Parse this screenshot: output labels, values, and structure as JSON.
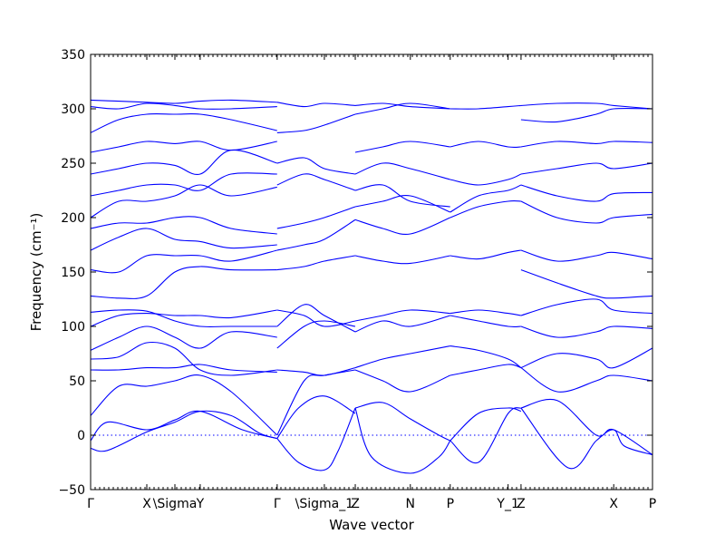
{
  "chart_data": {
    "type": "line",
    "title": "",
    "xlabel": "Wave vector",
    "ylabel": "Frequency (cm⁻¹)",
    "ylim": [
      -50,
      350
    ],
    "y_ticks": [
      -50,
      0,
      50,
      100,
      150,
      200,
      250,
      300,
      350
    ],
    "y_tick_labels": [
      "−50",
      "0",
      "50",
      "100",
      "150",
      "200",
      "250",
      "300",
      "350"
    ],
    "x_range": [
      0,
      1
    ],
    "grid": false,
    "reference_line": {
      "y": 0,
      "style": "dotted"
    },
    "line_color": "#0000ff",
    "x_ticks": [
      {
        "label": "Γ",
        "x": 0.0
      },
      {
        "label": "X",
        "x": 0.1
      },
      {
        "label": "\\Sigma",
        "x": 0.15
      },
      {
        "label": "Y",
        "x": 0.195
      },
      {
        "label": "Γ",
        "x": 0.332
      },
      {
        "label": "\\Sigma_1",
        "x": 0.416
      },
      {
        "label": "Z",
        "x": 0.471
      },
      {
        "label": "N",
        "x": 0.569
      },
      {
        "label": "P",
        "x": 0.64
      },
      {
        "label": "Y_1",
        "x": 0.743
      },
      {
        "label": "Z",
        "x": 0.766
      },
      {
        "label": "X",
        "x": 0.931
      },
      {
        "label": "P",
        "x": 1.0
      }
    ],
    "series": [
      {
        "x": [
          0,
          0.03,
          0.1,
          0.15,
          0.195,
          0.25,
          0.3,
          0.332
        ],
        "y": [
          -12,
          -14,
          3,
          12,
          22,
          18,
          2,
          -3
        ]
      },
      {
        "x": [
          0,
          0.03,
          0.1,
          0.15,
          0.195,
          0.27,
          0.332
        ],
        "y": [
          -5,
          12,
          5,
          14,
          22,
          5,
          -3
        ]
      },
      {
        "x": [
          0,
          0.05,
          0.1,
          0.15,
          0.195,
          0.25,
          0.332
        ],
        "y": [
          18,
          45,
          45,
          50,
          55,
          40,
          0
        ]
      },
      {
        "x": [
          0,
          0.05,
          0.1,
          0.15,
          0.195,
          0.25,
          0.332
        ],
        "y": [
          60,
          60,
          62,
          62,
          65,
          60,
          58
        ]
      },
      {
        "x": [
          0,
          0.05,
          0.1,
          0.15,
          0.195,
          0.25,
          0.332
        ],
        "y": [
          70,
          72,
          85,
          80,
          60,
          55,
          60
        ]
      },
      {
        "x": [
          0,
          0.05,
          0.1,
          0.15,
          0.195,
          0.25,
          0.332
        ],
        "y": [
          78,
          90,
          100,
          90,
          80,
          95,
          90
        ]
      },
      {
        "x": [
          0,
          0.05,
          0.1,
          0.15,
          0.195,
          0.25,
          0.332
        ],
        "y": [
          100,
          110,
          112,
          110,
          110,
          108,
          115
        ]
      },
      {
        "x": [
          0,
          0.05,
          0.1,
          0.15,
          0.195,
          0.25,
          0.332
        ],
        "y": [
          113,
          115,
          114,
          105,
          100,
          100,
          100
        ]
      },
      {
        "x": [
          0,
          0.05,
          0.1,
          0.15,
          0.195,
          0.25,
          0.332
        ],
        "y": [
          128,
          126,
          128,
          150,
          155,
          152,
          152
        ]
      },
      {
        "x": [
          0,
          0.05,
          0.1,
          0.15,
          0.195,
          0.25,
          0.332
        ],
        "y": [
          152,
          150,
          165,
          165,
          165,
          160,
          170
        ]
      },
      {
        "x": [
          0,
          0.05,
          0.1,
          0.15,
          0.195,
          0.25,
          0.332
        ],
        "y": [
          170,
          182,
          190,
          180,
          178,
          172,
          175
        ]
      },
      {
        "x": [
          0,
          0.05,
          0.1,
          0.15,
          0.195,
          0.25,
          0.332
        ],
        "y": [
          190,
          195,
          195,
          200,
          200,
          190,
          185
        ]
      },
      {
        "x": [
          0,
          0.05,
          0.1,
          0.15,
          0.195,
          0.25,
          0.332
        ],
        "y": [
          200,
          215,
          215,
          220,
          230,
          220,
          228
        ]
      },
      {
        "x": [
          0,
          0.05,
          0.1,
          0.15,
          0.195,
          0.25,
          0.332
        ],
        "y": [
          220,
          225,
          230,
          230,
          225,
          240,
          240
        ]
      },
      {
        "x": [
          0,
          0.05,
          0.1,
          0.15,
          0.195,
          0.25,
          0.332
        ],
        "y": [
          240,
          245,
          250,
          248,
          240,
          262,
          250
        ]
      },
      {
        "x": [
          0,
          0.05,
          0.1,
          0.15,
          0.195,
          0.25,
          0.332
        ],
        "y": [
          260,
          265,
          270,
          268,
          270,
          262,
          270
        ]
      },
      {
        "x": [
          0,
          0.05,
          0.1,
          0.15,
          0.195,
          0.25,
          0.332
        ],
        "y": [
          278,
          290,
          295,
          295,
          295,
          290,
          280
        ]
      },
      {
        "x": [
          0,
          0.05,
          0.1,
          0.15,
          0.195,
          0.25,
          0.332
        ],
        "y": [
          302,
          300,
          305,
          303,
          300,
          300,
          302
        ]
      },
      {
        "x": [
          0,
          0.05,
          0.1,
          0.15,
          0.195,
          0.25,
          0.332
        ],
        "y": [
          308,
          307,
          306,
          305,
          307,
          308,
          306
        ]
      },
      {
        "x": [
          0.332,
          0.37,
          0.416,
          0.44,
          0.471
        ],
        "y": [
          -3,
          -25,
          -32,
          -15,
          25
        ]
      },
      {
        "x": [
          0.332,
          0.37,
          0.416,
          0.471
        ],
        "y": [
          -3,
          25,
          36,
          20
        ]
      },
      {
        "x": [
          0.332,
          0.38,
          0.416,
          0.471
        ],
        "y": [
          0,
          50,
          55,
          60
        ]
      },
      {
        "x": [
          0.332,
          0.38,
          0.416,
          0.471
        ],
        "y": [
          60,
          58,
          55,
          62
        ]
      },
      {
        "x": [
          0.332,
          0.38,
          0.416,
          0.471
        ],
        "y": [
          80,
          100,
          105,
          100
        ]
      },
      {
        "x": [
          0.332,
          0.38,
          0.416,
          0.471
        ],
        "y": [
          100,
          120,
          110,
          95
        ]
      },
      {
        "x": [
          0.332,
          0.38,
          0.416,
          0.471
        ],
        "y": [
          115,
          110,
          100,
          105
        ]
      },
      {
        "x": [
          0.332,
          0.38,
          0.416,
          0.471
        ],
        "y": [
          152,
          155,
          160,
          165
        ]
      },
      {
        "x": [
          0.332,
          0.38,
          0.416,
          0.471
        ],
        "y": [
          170,
          175,
          180,
          198
        ]
      },
      {
        "x": [
          0.332,
          0.38,
          0.416,
          0.471
        ],
        "y": [
          190,
          195,
          200,
          210
        ]
      },
      {
        "x": [
          0.332,
          0.38,
          0.416,
          0.471
        ],
        "y": [
          230,
          240,
          235,
          225
        ]
      },
      {
        "x": [
          0.332,
          0.38,
          0.416,
          0.471
        ],
        "y": [
          250,
          255,
          245,
          240
        ]
      },
      {
        "x": [
          0.332,
          0.38,
          0.416,
          0.471
        ],
        "y": [
          278,
          280,
          285,
          295
        ]
      },
      {
        "x": [
          0.332,
          0.38,
          0.416,
          0.471
        ],
        "y": [
          306,
          302,
          305,
          303
        ]
      },
      {
        "x": [
          0.471,
          0.5,
          0.569,
          0.62,
          0.64
        ],
        "y": [
          25,
          -20,
          -35,
          -20,
          -5
        ]
      },
      {
        "x": [
          0.471,
          0.52,
          0.569,
          0.62,
          0.64
        ],
        "y": [
          25,
          30,
          15,
          0,
          -5
        ]
      },
      {
        "x": [
          0.471,
          0.52,
          0.569,
          0.64
        ],
        "y": [
          60,
          50,
          40,
          55
        ]
      },
      {
        "x": [
          0.471,
          0.52,
          0.569,
          0.64
        ],
        "y": [
          62,
          70,
          75,
          82
        ]
      },
      {
        "x": [
          0.471,
          0.52,
          0.569,
          0.64
        ],
        "y": [
          95,
          105,
          100,
          110
        ]
      },
      {
        "x": [
          0.471,
          0.52,
          0.569,
          0.64
        ],
        "y": [
          105,
          110,
          115,
          112
        ]
      },
      {
        "x": [
          0.471,
          0.52,
          0.569,
          0.64
        ],
        "y": [
          165,
          160,
          158,
          165
        ]
      },
      {
        "x": [
          0.471,
          0.52,
          0.569,
          0.64
        ],
        "y": [
          198,
          190,
          185,
          200
        ]
      },
      {
        "x": [
          0.471,
          0.52,
          0.569,
          0.64
        ],
        "y": [
          210,
          215,
          220,
          205
        ]
      },
      {
        "x": [
          0.471,
          0.52,
          0.569,
          0.64
        ],
        "y": [
          225,
          230,
          215,
          210
        ]
      },
      {
        "x": [
          0.471,
          0.52,
          0.569,
          0.64
        ],
        "y": [
          240,
          250,
          245,
          235
        ]
      },
      {
        "x": [
          0.471,
          0.52,
          0.569,
          0.64
        ],
        "y": [
          260,
          265,
          270,
          265
        ]
      },
      {
        "x": [
          0.471,
          0.52,
          0.569,
          0.64
        ],
        "y": [
          295,
          300,
          305,
          300
        ]
      },
      {
        "x": [
          0.471,
          0.52,
          0.569,
          0.64
        ],
        "y": [
          303,
          305,
          302,
          300
        ]
      },
      {
        "x": [
          0.64,
          0.69,
          0.743,
          0.766
        ],
        "y": [
          -5,
          -25,
          20,
          25
        ]
      },
      {
        "x": [
          0.64,
          0.69,
          0.743,
          0.766
        ],
        "y": [
          -5,
          20,
          25,
          22
        ]
      },
      {
        "x": [
          0.64,
          0.69,
          0.743,
          0.766
        ],
        "y": [
          55,
          60,
          65,
          62
        ]
      },
      {
        "x": [
          0.64,
          0.69,
          0.743,
          0.766
        ],
        "y": [
          82,
          78,
          70,
          62
        ]
      },
      {
        "x": [
          0.64,
          0.69,
          0.743,
          0.766
        ],
        "y": [
          110,
          105,
          100,
          100
        ]
      },
      {
        "x": [
          0.64,
          0.69,
          0.743,
          0.766
        ],
        "y": [
          112,
          115,
          112,
          110
        ]
      },
      {
        "x": [
          0.64,
          0.69,
          0.743,
          0.766
        ],
        "y": [
          165,
          162,
          168,
          170
        ]
      },
      {
        "x": [
          0.64,
          0.69,
          0.743,
          0.766
        ],
        "y": [
          200,
          210,
          215,
          215
        ]
      },
      {
        "x": [
          0.64,
          0.69,
          0.743,
          0.766
        ],
        "y": [
          205,
          220,
          225,
          230
        ]
      },
      {
        "x": [
          0.64,
          0.69,
          0.743,
          0.766
        ],
        "y": [
          235,
          230,
          235,
          240
        ]
      },
      {
        "x": [
          0.64,
          0.69,
          0.743,
          0.766
        ],
        "y": [
          265,
          270,
          265,
          265
        ]
      },
      {
        "x": [
          0.64,
          0.69,
          0.743,
          0.766
        ],
        "y": [
          300,
          300,
          302,
          303
        ]
      },
      {
        "x": [
          0.766,
          0.85,
          0.9,
          0.931,
          0.95,
          1.0
        ],
        "y": [
          25,
          -30,
          -5,
          5,
          -10,
          -18
        ]
      },
      {
        "x": [
          0.766,
          0.83,
          0.9,
          0.931,
          1.0
        ],
        "y": [
          25,
          32,
          0,
          5,
          -18
        ]
      },
      {
        "x": [
          0.766,
          0.83,
          0.9,
          0.931,
          1.0
        ],
        "y": [
          62,
          40,
          50,
          55,
          50
        ]
      },
      {
        "x": [
          0.766,
          0.83,
          0.9,
          0.931,
          1.0
        ],
        "y": [
          62,
          75,
          70,
          62,
          80
        ]
      },
      {
        "x": [
          0.766,
          0.83,
          0.9,
          0.931,
          1.0
        ],
        "y": [
          100,
          90,
          95,
          100,
          98
        ]
      },
      {
        "x": [
          0.766,
          0.83,
          0.9,
          0.931,
          1.0
        ],
        "y": [
          110,
          120,
          125,
          115,
          112
        ]
      },
      {
        "x": [
          0.766,
          0.83,
          0.9,
          0.931,
          1.0
        ],
        "y": [
          152,
          140,
          128,
          126,
          128
        ]
      },
      {
        "x": [
          0.766,
          0.83,
          0.9,
          0.931,
          1.0
        ],
        "y": [
          170,
          160,
          165,
          168,
          162
        ]
      },
      {
        "x": [
          0.766,
          0.83,
          0.9,
          0.931,
          1.0
        ],
        "y": [
          215,
          200,
          195,
          200,
          203
        ]
      },
      {
        "x": [
          0.766,
          0.83,
          0.9,
          0.931,
          1.0
        ],
        "y": [
          230,
          220,
          215,
          222,
          223
        ]
      },
      {
        "x": [
          0.766,
          0.83,
          0.9,
          0.931,
          1.0
        ],
        "y": [
          240,
          245,
          250,
          245,
          250
        ]
      },
      {
        "x": [
          0.766,
          0.83,
          0.9,
          0.931,
          1.0
        ],
        "y": [
          265,
          270,
          268,
          270,
          269
        ]
      },
      {
        "x": [
          0.766,
          0.83,
          0.9,
          0.931,
          1.0
        ],
        "y": [
          290,
          288,
          295,
          300,
          300
        ]
      },
      {
        "x": [
          0.766,
          0.83,
          0.9,
          0.931,
          1.0
        ],
        "y": [
          303,
          305,
          305,
          303,
          300
        ]
      }
    ]
  }
}
